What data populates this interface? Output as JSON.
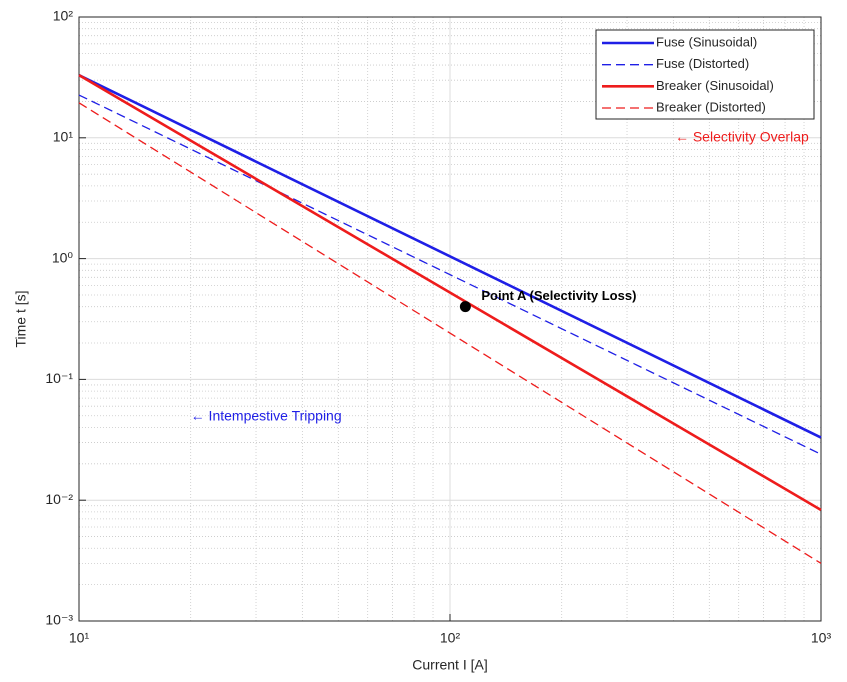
{
  "chart_data": {
    "type": "line",
    "xlabel": "Current I [A]",
    "ylabel": "Time t [s]",
    "xscale": "log",
    "yscale": "log",
    "xlim": [
      10,
      1000
    ],
    "ylim": [
      0.001,
      100
    ],
    "xticks": [
      {
        "value": 10,
        "label": "10¹"
      },
      {
        "value": 100,
        "label": "10²"
      },
      {
        "value": 1000,
        "label": "10³"
      }
    ],
    "yticks": [
      {
        "value": 0.001,
        "label": "10⁻³"
      },
      {
        "value": 0.01,
        "label": "10⁻²"
      },
      {
        "value": 0.1,
        "label": "10⁻¹"
      },
      {
        "value": 1,
        "label": "10⁰"
      },
      {
        "value": 10,
        "label": "10¹"
      },
      {
        "value": 100,
        "label": "10²"
      }
    ],
    "grid": true,
    "minor_grid": true,
    "legend": "northeast",
    "series": [
      {
        "name": "Fuse (Sinusoidal)",
        "color": "#1f1fe6",
        "linestyle": "solid",
        "x": [
          10,
          1000
        ],
        "values": [
          33,
          0.033
        ]
      },
      {
        "name": "Fuse (Distorted)",
        "color": "#1f1fe6",
        "linestyle": "dashed",
        "x": [
          10,
          1000
        ],
        "values": [
          22.6,
          0.024
        ]
      },
      {
        "name": "Breaker (Sinusoidal)",
        "color": "#ee1c1c",
        "linestyle": "solid",
        "x": [
          10,
          1000
        ],
        "values": [
          33,
          0.0083
        ]
      },
      {
        "name": "Breaker (Distorted)",
        "color": "#ee1c1c",
        "linestyle": "dashed",
        "x": [
          10,
          1000
        ],
        "values": [
          19.5,
          0.003
        ]
      }
    ],
    "points": [
      {
        "label": "Point A (Selectivity Loss)",
        "x": 110,
        "y": 0.4,
        "color": "#000000"
      }
    ],
    "annotations": [
      {
        "text": "← Selectivity Overlap",
        "x": 404,
        "y": 10,
        "color": "#ee1c1c"
      },
      {
        "text": "← Intempestive Tripping",
        "x": 20,
        "y": 0.049,
        "color": "#1f1fe6"
      }
    ]
  }
}
